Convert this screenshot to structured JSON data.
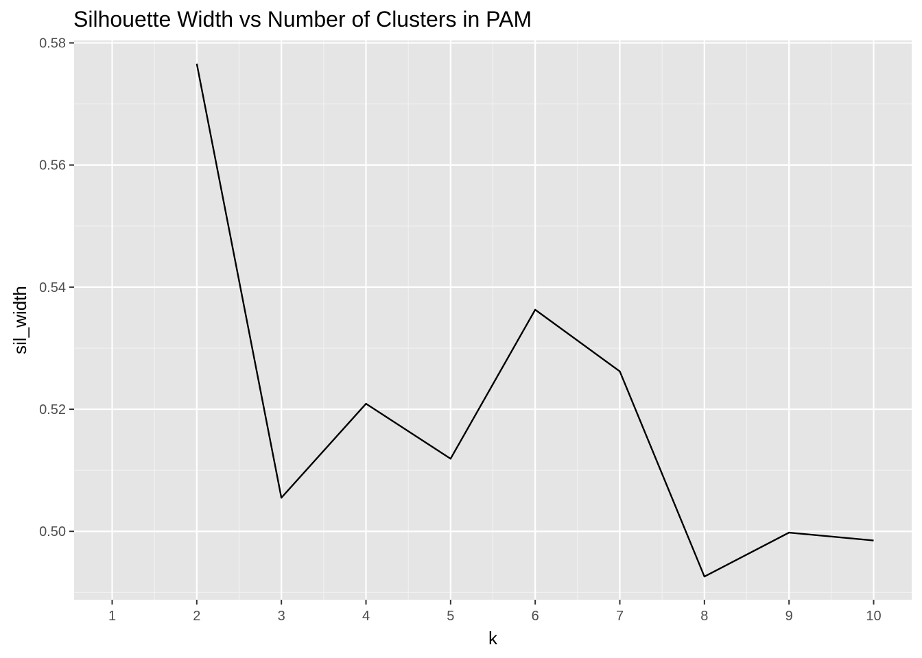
{
  "chart_data": {
    "type": "line",
    "title": "Silhouette Width vs Number of Clusters in PAM",
    "xlabel": "k",
    "ylabel": "sil_width",
    "xlim": [
      0.55,
      10.45
    ],
    "ylim": [
      0.4888,
      0.5804
    ],
    "x_ticks": [
      1,
      2,
      3,
      4,
      5,
      6,
      7,
      8,
      9,
      10
    ],
    "y_ticks": [
      0.5,
      0.52,
      0.54,
      0.56,
      0.58
    ],
    "y_tick_labels": [
      "0.50",
      "0.52",
      "0.54",
      "0.56",
      "0.58"
    ],
    "grid": true,
    "series": [
      {
        "x": [
          2,
          3,
          4,
          5,
          6,
          7,
          8,
          9,
          10
        ],
        "values": [
          0.5766,
          0.5055,
          0.5209,
          0.5119,
          0.5363,
          0.5262,
          0.4926,
          0.4998,
          0.4985
        ],
        "color": "#000000"
      }
    ]
  },
  "colors": {
    "panel_background": "#e5e5e5",
    "grid": "#ffffff",
    "line": "#000000"
  }
}
